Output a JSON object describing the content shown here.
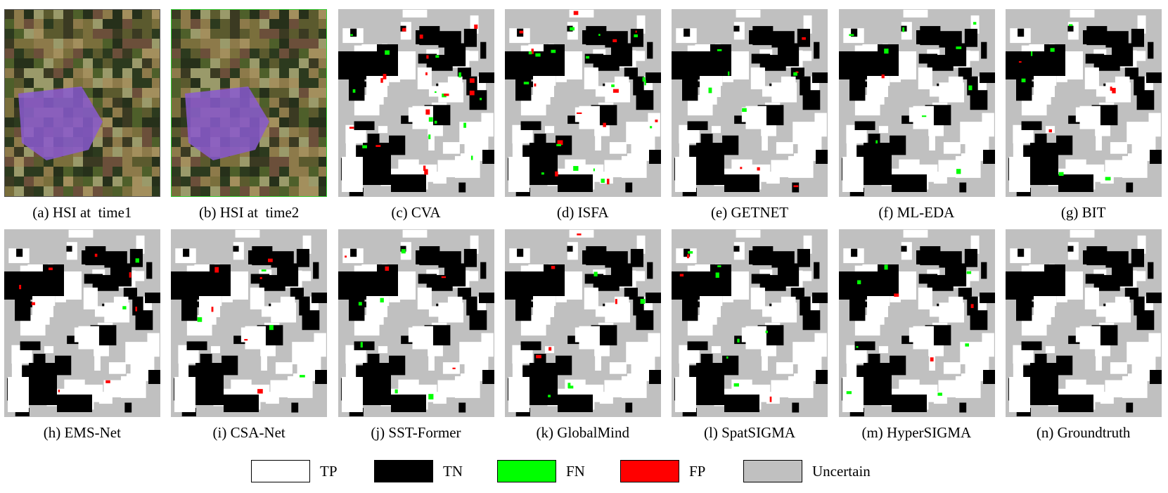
{
  "panels": [
    {
      "caption": "(a) HSI at  time1"
    },
    {
      "caption": "(b) HSI at  time2"
    },
    {
      "caption": "(c) CVA"
    },
    {
      "caption": "(d) ISFA"
    },
    {
      "caption": "(e) GETNET"
    },
    {
      "caption": "(f) ML-EDA"
    },
    {
      "caption": "(g) BIT"
    },
    {
      "caption": "(h) EMS-Net"
    },
    {
      "caption": "(i) CSA-Net"
    },
    {
      "caption": "(j) SST-Former"
    },
    {
      "caption": "(k) GlobalMind"
    },
    {
      "caption": "(l) SpatSIGMA"
    },
    {
      "caption": "(m) HyperSIGMA"
    },
    {
      "caption": "(n) Groundtruth"
    }
  ],
  "legend": [
    {
      "label": "TP"
    },
    {
      "label": "TN"
    },
    {
      "label": "FN"
    },
    {
      "label": "FP"
    },
    {
      "label": "Uncertain"
    }
  ]
}
